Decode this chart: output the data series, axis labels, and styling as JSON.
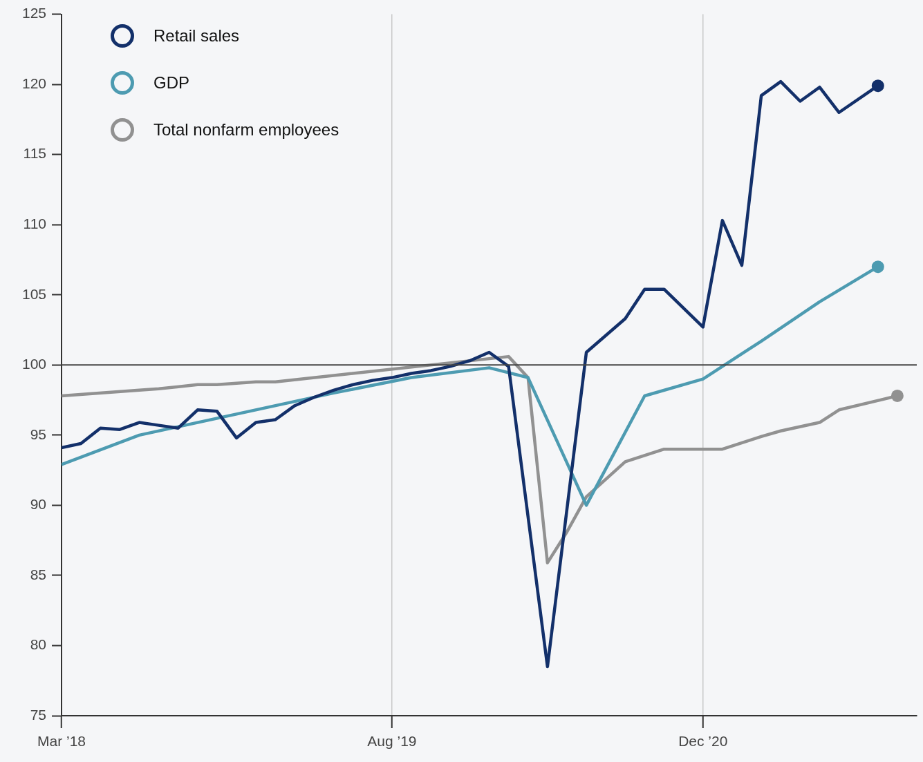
{
  "chart_data": {
    "type": "line",
    "xlim": [
      "2018-03",
      "2021-11"
    ],
    "xticks": [
      {
        "value": "2018-03",
        "label": "Mar ’18"
      },
      {
        "value": "2019-08",
        "label": "Aug ’19"
      },
      {
        "value": "2020-12",
        "label": "Dec ’20"
      }
    ],
    "ylim": [
      75,
      125
    ],
    "yticks": [
      75,
      80,
      85,
      90,
      95,
      100,
      105,
      110,
      115,
      120,
      125
    ],
    "grid": "x",
    "legend": "top left",
    "line_style": "solid",
    "ref_lines": [
      {
        "axis": "y",
        "value": 100,
        "color": "#444444"
      }
    ],
    "series": [
      {
        "name": "Retail sales",
        "color": "#13306a",
        "x": [
          "2018-03",
          "2018-04",
          "2018-05",
          "2018-06",
          "2018-07",
          "2018-08",
          "2018-09",
          "2018-10",
          "2018-11",
          "2018-12",
          "2019-01",
          "2019-02",
          "2019-03",
          "2019-04",
          "2019-05",
          "2019-06",
          "2019-07",
          "2019-08",
          "2019-09",
          "2019-10",
          "2019-11",
          "2019-12",
          "2020-01",
          "2020-02",
          "2020-04",
          "2020-06",
          "2020-08",
          "2020-09",
          "2020-10",
          "2020-12",
          "2021-01",
          "2021-02",
          "2021-03",
          "2021-04",
          "2021-05",
          "2021-06",
          "2021-07",
          "2021-09"
        ],
        "values": [
          94.1,
          94.4,
          95.5,
          95.4,
          95.9,
          95.7,
          95.5,
          96.8,
          96.7,
          94.8,
          95.9,
          96.1,
          97.1,
          97.7,
          98.2,
          98.6,
          98.9,
          99.1,
          99.4,
          99.6,
          99.9,
          100.3,
          100.9,
          99.9,
          78.5,
          100.9,
          103.3,
          105.4,
          105.4,
          102.7,
          110.3,
          107.1,
          119.2,
          120.2,
          118.8,
          119.8,
          118.0,
          119.9
        ]
      },
      {
        "name": "GDP",
        "color": "#4d9bb1",
        "x": [
          "2018-03",
          "2018-07",
          "2019-05",
          "2019-09",
          "2020-01",
          "2020-03",
          "2020-06",
          "2020-09",
          "2020-12",
          "2021-03",
          "2021-06",
          "2021-09"
        ],
        "values": [
          92.9,
          95.0,
          98.0,
          99.1,
          99.8,
          99.1,
          90.0,
          97.8,
          99.0,
          101.7,
          104.5,
          107.0
        ]
      },
      {
        "name": "Total nonfarm employees",
        "color": "#919191",
        "x": [
          "2018-03",
          "2018-07",
          "2018-08",
          "2018-10",
          "2018-11",
          "2019-01",
          "2019-02",
          "2020-02",
          "2020-03",
          "2020-04",
          "2020-05",
          "2020-06",
          "2020-08",
          "2020-10",
          "2021-01",
          "2021-03",
          "2021-04",
          "2021-06",
          "2021-07",
          "2021-10"
        ],
        "values": [
          97.8,
          98.2,
          98.3,
          98.6,
          98.6,
          98.8,
          98.8,
          100.6,
          99.1,
          85.9,
          88.1,
          90.6,
          93.1,
          94.0,
          94.0,
          94.9,
          95.3,
          95.9,
          96.8,
          97.8
        ]
      }
    ]
  }
}
